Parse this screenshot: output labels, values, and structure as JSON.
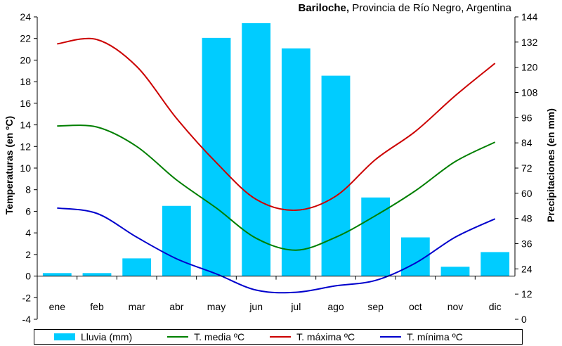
{
  "title": {
    "bold": "Bariloche,",
    "rest": " Provincia de Río Negro, Argentina"
  },
  "chart_data": {
    "type": "bar+line",
    "categories": [
      "ene",
      "feb",
      "mar",
      "abr",
      "may",
      "jun",
      "jul",
      "ago",
      "sep",
      "oct",
      "nov",
      "dic"
    ],
    "ylabel_left": "Temperaturas (en ºC)",
    "ylabel_right": "Precipitaciones (en mm)",
    "ylim_left": [
      -4,
      24
    ],
    "yticks_left": [
      -4,
      -2,
      0,
      2,
      4,
      6,
      8,
      10,
      12,
      14,
      16,
      18,
      20,
      22,
      24
    ],
    "ylim_right": [
      0,
      144
    ],
    "yticks_right": [
      0,
      12,
      24,
      36,
      48,
      60,
      72,
      84,
      96,
      108,
      120,
      132,
      144
    ],
    "grid": false,
    "legend_position": "bottom",
    "bars": {
      "name": "Lluvia (mm)",
      "axis": "right",
      "color": "#00ccff",
      "values": [
        22,
        22,
        29,
        54,
        134,
        141,
        129,
        116,
        58,
        39,
        25,
        32
      ]
    },
    "series": [
      {
        "name": "T. media ºC",
        "axis": "left",
        "color": "#007f00",
        "values": [
          13.9,
          13.8,
          12.0,
          8.9,
          6.3,
          3.5,
          2.4,
          3.6,
          5.6,
          7.9,
          10.6,
          12.4
        ]
      },
      {
        "name": "T. máxima ºC",
        "axis": "left",
        "color": "#cc0000",
        "values": [
          21.5,
          21.9,
          19.4,
          14.6,
          10.5,
          7.1,
          6.1,
          7.4,
          10.8,
          13.4,
          16.7,
          19.7
        ]
      },
      {
        "name": "T. mínima ºC",
        "axis": "left",
        "color": "#0000cc",
        "values": [
          6.3,
          5.8,
          3.6,
          1.6,
          0.2,
          -1.3,
          -1.5,
          -0.9,
          -0.4,
          1.2,
          3.6,
          5.3
        ]
      }
    ]
  }
}
